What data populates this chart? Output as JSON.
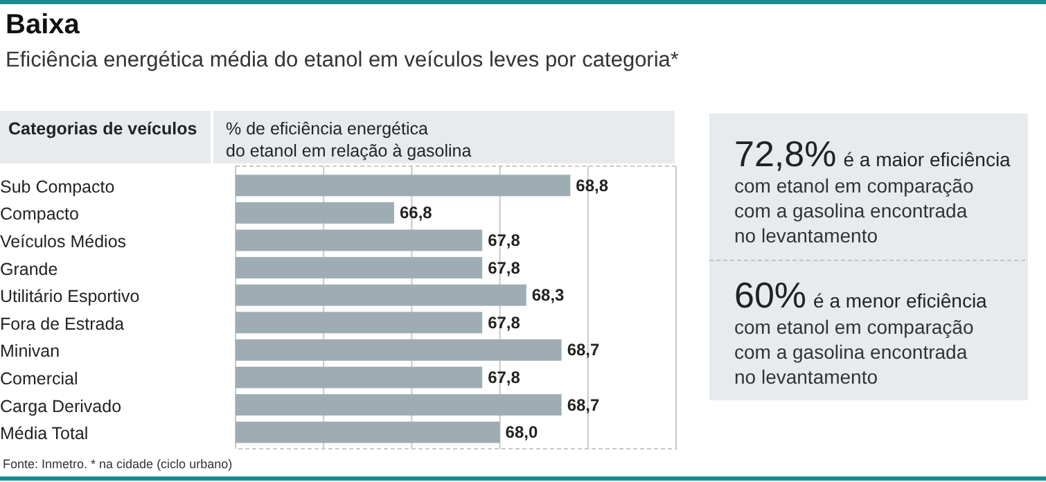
{
  "chart_data": {
    "type": "bar",
    "orientation": "horizontal",
    "title": "Baixa",
    "subtitle": "Eficiência energética média do etanol em veículos leves por categoria*",
    "ylabel": "Categorias de veículos",
    "xlabel": "% de eficiência energética\ndo etanol em relação à gasolina",
    "categories": [
      "Sub Compacto",
      "Compacto",
      "Veículos Médios",
      "Grande",
      "Utilitário Esportivo",
      "Fora de Estrada",
      "Minivan",
      "Comercial",
      "Carga Derivado",
      "Média Total"
    ],
    "values": [
      68.8,
      66.8,
      67.8,
      67.8,
      68.3,
      67.8,
      68.7,
      67.8,
      68.7,
      68.0
    ],
    "value_labels": [
      "68,8",
      "66,8",
      "67,8",
      "67,8",
      "68,3",
      "67,8",
      "68,7",
      "67,8",
      "68,7",
      "68,0"
    ],
    "color": "#9eadb3",
    "xlim": [
      65,
      70
    ],
    "xticks": [
      {
        "value": 65,
        "label": null
      },
      {
        "value": 66,
        "label": null
      },
      {
        "value": 67,
        "label": null
      },
      {
        "value": 68,
        "label": null
      },
      {
        "value": 69,
        "label": null
      },
      {
        "value": 70,
        "label": null
      }
    ],
    "grid": "x",
    "tick_labels": "y",
    "annotations": [
      "72,8% é a maior eficiência\ncom etanol em comparação\ncom a gasolina encontrada\nno levantamento",
      "60% é a menor eficiência\ncom etanol em comparação\ncom a gasolina encontrada\nno levantamento",
      "Fonte: Inmetro. * na cidade (ciclo urbano)"
    ]
  }
}
